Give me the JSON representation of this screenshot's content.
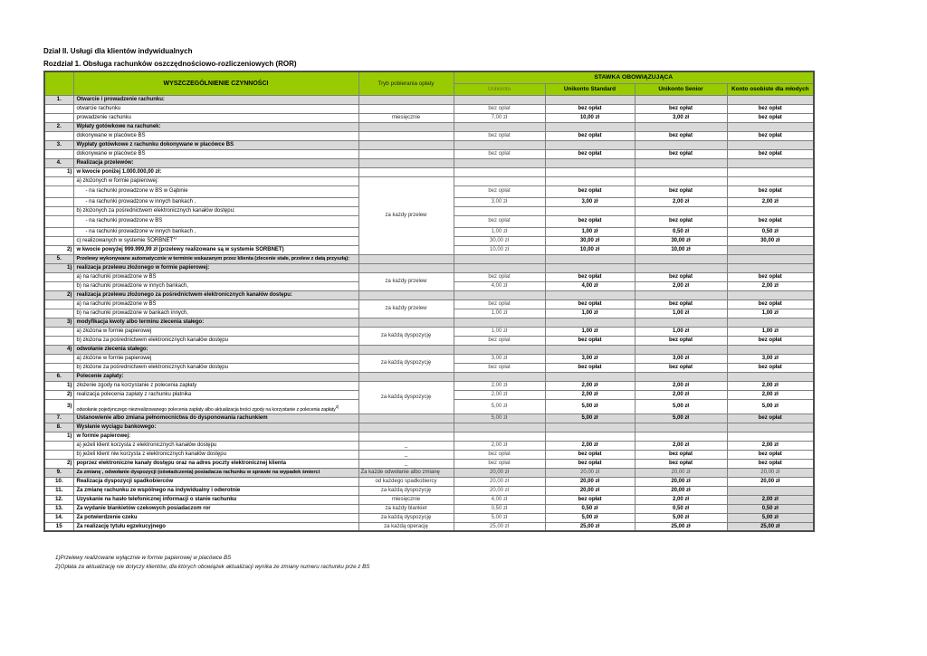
{
  "page": {
    "title_line1": "Dział II. Usługi dla klientów indywidualnych",
    "title_line2": "Rozdział 1. Obsługa rachunków oszczędnościowo-rozliczeniowych (ROR)"
  },
  "table": {
    "header": {
      "col_activities": "WYSZCZEGÓLNIENIE CZYNNOŚCI",
      "col_mode": "Tryb pobierania opłaty",
      "col_rate_group": "STAWKA OBOWIĄZUJĄCA",
      "accounts": [
        "Unikonto",
        "Unikonto Standard",
        "Unikonto Senior",
        "Konto osobiste dla młodych"
      ]
    },
    "rows": [
      {
        "num": "1.",
        "label": "Otwarcie i prowadzenie rachunku:",
        "bold": true,
        "bg": "g",
        "values": null
      },
      {
        "label": "otwarcie rachunku",
        "values": [
          "bez opłat",
          "bez opłat",
          "bez opłat",
          "bez opłat"
        ]
      },
      {
        "label": "prowadzenie rachunku",
        "mode": "miesięcznie",
        "values": [
          "7,00 zł",
          "10,00 zł",
          "3,00 zł",
          "bez opłat"
        ]
      },
      {
        "num": "2.",
        "label": "Wpłaty gotówkowe na rachunek:",
        "bold": true,
        "bg": "g",
        "values": null
      },
      {
        "label": "dokonywane w placówce BS",
        "values": [
          "bez opłat",
          "bez opłat",
          "bez opłat",
          "bez opłat"
        ]
      },
      {
        "num": "3.",
        "label": "Wypłaty gotówkowe z rachunku dokonywane w placówce BS",
        "bold": true,
        "bg": "g",
        "values": null
      },
      {
        "label": "dokonywane w placówce BS",
        "values": [
          "bez opłat",
          "bez opłat",
          "bez opłat",
          "bez opłat"
        ]
      },
      {
        "num": "4.",
        "label": "Realizacja przelewów:",
        "bold": true,
        "bg": "g",
        "values": null
      },
      {
        "num": "1)",
        "num_style": "s",
        "label": "w kwocie poniżej 1.000.000,00 zł:",
        "bold": true,
        "values": null
      },
      {
        "label": "a) złożonych w formie papierowej:",
        "mode": "za każdy przelew",
        "mode_span": 8,
        "values": null
      },
      {
        "label": "- na rachunki prowadzone w BS w Gąbinie",
        "indent": 1,
        "mode_skip": true,
        "values": [
          "bez opłat",
          "bez opłat",
          "bez opłat",
          "bez opłat"
        ],
        "height": 13
      },
      {
        "label": "- na rachunki prowadzone w innych bankach ,",
        "indent": 1,
        "mode_skip": true,
        "values": [
          "3,00 zł",
          "3,00 zł",
          "2,00 zł",
          "2,00 zł"
        ]
      },
      {
        "label": "b) złożonych za pośrednictwem elektronicznych kanałów dostępu:",
        "mode_skip": true,
        "values": null
      },
      {
        "label": "- na rachunki prowadzone w BS",
        "indent": 1,
        "mode_skip": true,
        "values": [
          "bez opłat",
          "bez opłat",
          "bez opłat",
          "bez opłat"
        ],
        "height": 13
      },
      {
        "label": "- na rachunki prowadzone w innych bankach ,",
        "indent": 1,
        "mode_skip": true,
        "values": [
          "1,00 zł",
          "1,00 zł",
          "0,50 zł",
          "0,50 zł"
        ]
      },
      {
        "label": "c) realizowanych w systemie SORBNET^1)",
        "mode_skip": true,
        "values": [
          "30,00 zł",
          "30,00 zł",
          "30,00 zł",
          "30,00 zł"
        ]
      },
      {
        "num": "2)",
        "num_style": "s",
        "label": "w kwocie powyżej 999.999,99 zł (przelewy realizowane są w systemie SORBNET)",
        "bold": true,
        "mode_skip": true,
        "values": [
          "10,00 zł",
          "10,00 zł",
          "10,00 zł",
          ""
        ],
        "value_bg": [
          0,
          0,
          0,
          1
        ]
      },
      {
        "num": "5.",
        "label": "Przelewy wykonywane automatycznie w terminie wskazanym przez klienta (zlecenie stałe, przelew z datą przyszłą):",
        "bold": true,
        "bg": "g",
        "values": null
      },
      {
        "num": "1)",
        "num_style": "s",
        "label": "realizacja przelewu złożonego w formie papierowej:",
        "bold": true,
        "bg": "g",
        "values": null
      },
      {
        "label": "a) na rachunki prowadzone w BS",
        "mode": "za każdy przelew",
        "mode_span": 2,
        "values": [
          "bez opłat",
          "bez opłat",
          "bez opłat",
          "bez opłat"
        ]
      },
      {
        "label": "b) na rachunki prowadzone w innych bankach,",
        "mode_skip": true,
        "values": [
          "4,00 zł",
          "4,00 zł",
          "2,00 zł",
          "2,00 zł"
        ]
      },
      {
        "num": "2)",
        "num_style": "s",
        "label": "realizacja przelewu złożonego za pośrednictwem elektronicznych kanałów dostępu:",
        "bold": true,
        "bg": "g",
        "values": null
      },
      {
        "label": "a) na rachunki prowadzone w BS",
        "mode": "za każdy przelew",
        "mode_span": 2,
        "values": [
          "bez opłat",
          "bez opłat",
          "bez opłat",
          "bez opłat"
        ]
      },
      {
        "label": "b) na rachunki prowadzone w bankach innych,",
        "mode_skip": true,
        "values": [
          "1,00 zł",
          "1,00 zł",
          "1,00 zł",
          "1,00 zł"
        ]
      },
      {
        "num": "3)",
        "num_style": "s",
        "label": "modyfikacja kwoty albo terminu zlecenia stałego:",
        "bold": true,
        "bg": "g",
        "values": null
      },
      {
        "label": "a) złożona w formie papierowej",
        "mode": "za każdą dyspozycję",
        "mode_span": 2,
        "values": [
          "1,00 zł",
          "1,00 zł",
          "1,00 zł",
          "1,00 zł"
        ]
      },
      {
        "label": "b) złożona za pośrednictwem elektronicznych kanałów dostępu",
        "mode_skip": true,
        "values": [
          "bez opłat",
          "bez opłat",
          "bez opłat",
          "bez opłat"
        ]
      },
      {
        "num": "4)",
        "num_style": "s",
        "label": "odwołanie zlecenia stałego:",
        "bold": true,
        "bg": "g",
        "values": null
      },
      {
        "label": "a) złożone w formie papierowej",
        "mode": "za każdą dyspozycję",
        "mode_span": 2,
        "values": [
          "3,00 zł",
          "3,00 zł",
          "3,00 zł",
          "3,00 zł"
        ]
      },
      {
        "label": "b) złożone za pośrednictwem elektronicznych kanałów dostępu",
        "mode_skip": true,
        "values": [
          "bez opłat",
          "bez opłat",
          "bez opłat",
          "bez opłat"
        ]
      },
      {
        "num": "6.",
        "label": "Polecenie zapłaty:",
        "bold": true,
        "bg": "g",
        "values": null
      },
      {
        "num": "1)",
        "num_style": "s",
        "label": "złożenie zgody na korzystanie z polecenia zapłaty",
        "mode": "za każdą dyspozycję",
        "mode_span": 3,
        "values": [
          "2,00 zł",
          "2,00 zł",
          "2,00 zł",
          "2,00 zł"
        ]
      },
      {
        "num": "2)",
        "num_style": "s",
        "label": "realizacja polecenia zapłaty z rachunku płatnika",
        "mode_skip": true,
        "values": [
          "2,00 zł",
          "2,00 zł",
          "2,00 zł",
          "2,00 zł"
        ]
      },
      {
        "num": "3)",
        "num_style": "s",
        "label": "odwołanie pojedynczego niezrealizowanego polecenia zapłaty albo aktualizacja treści zgody na korzystanie z polecenia zapłaty^2)",
        "mode_skip": true,
        "values": [
          "5,00 zł",
          "5,00 zł",
          "5,00 zł",
          "5,00 zł"
        ],
        "height": 16,
        "label_bottom": true
      },
      {
        "num": "7.",
        "label": "Ustanowienie albo zmiana pełnomocnictwa do dysponowania rachunkiem",
        "bold": true,
        "bg": "g",
        "values": [
          "5,00 zł",
          "5,00 zł",
          "5,00 zł",
          "bez opłat"
        ]
      },
      {
        "num": "8.",
        "label": "Wysłanie wyciągu bankowego:",
        "bold": true,
        "bg": "g",
        "values": null
      },
      {
        "num": "1)",
        "num_style": "s",
        "label": "w formie papierowej:",
        "bold": true,
        "values": null
      },
      {
        "label": "a) jeżeli klient korzysta z elektronicznych kanałów dostępu",
        "mode": "_",
        "values": [
          "2,00 zł",
          "2,00 zł",
          "2,00 zł",
          "2,00 zł"
        ]
      },
      {
        "label": "b) jeżeli klient niw korzysta z elektronicznych kanałów dostępu",
        "mode": "_",
        "values": [
          "bez opłat",
          "bez opłat",
          "bez opłat",
          "bez opłat"
        ]
      },
      {
        "num": "2)",
        "num_style": "s",
        "label": "poprzez elektroniczne kanały dostępu oraz na adres poczty elektronicznej klienta",
        "bold": true,
        "mode": "_",
        "values": [
          "bez opłat",
          "bez opłat",
          "bez opłat",
          "bez opłat"
        ]
      },
      {
        "num": "9.",
        "label": "Za zmianę , odwołanie dyspozycji  (oświadczenia) posiadacza rachunku w sprawie na wypadek śmierci",
        "bold": true,
        "bg": "g",
        "mode": "Za każde odwołanie albo zmianę",
        "mode_left": true,
        "values": [
          "20,00 zł",
          "20,00 zł",
          "20,00 zł",
          "20,00 zł"
        ],
        "values_normal": true
      },
      {
        "num": "10.",
        "label": "Realizacja dyspozycji spadkobierców",
        "bold": true,
        "mode": "od każdego spadkobiercy",
        "values": [
          "20,00 zł",
          "20,00 zł",
          "20,00 zł",
          "20,00 zł"
        ]
      },
      {
        "num": "11.",
        "label": "Za zmianę rachunku ze wspólnego na indywidualny i odwrotnie",
        "bold": true,
        "mode": "za każdą dyspozycję",
        "values": [
          "20,00 zł",
          "20,00 zł",
          "20,00 zł",
          ""
        ],
        "value_bg": [
          0,
          0,
          0,
          1
        ]
      },
      {
        "num": "12.",
        "label": "Uzyskanie na hasło telefonicznej informacji o stanie rachunku",
        "bold": true,
        "mode": "miesięcznie",
        "values": [
          "4,00 zł",
          "bez opłat",
          "2,00 zł",
          "2,00 zł"
        ],
        "value_bg": [
          0,
          0,
          0,
          1
        ]
      },
      {
        "num": "13.",
        "label": "Za wydanie blankietów czekowych posiadaczom ror",
        "bold": true,
        "mode": "za każdy blankiet",
        "values": [
          "0,50 zł",
          "0,50 zł",
          "0,50 zł",
          "0,50 zł"
        ],
        "value_bg": [
          0,
          0,
          0,
          1
        ]
      },
      {
        "num": "14.",
        "label": "Za potwierdzenie czeku",
        "bold": true,
        "mode": "za każdą dyspozycję",
        "values": [
          "5,00 zł",
          "5,00 zł",
          "5,00 zł",
          "5,00 zł"
        ],
        "value_bg": [
          0,
          0,
          0,
          1
        ]
      },
      {
        "num": "15",
        "label": "Za realizację tytułu egzekucyjnego",
        "bold": true,
        "mode": "za każdą operację",
        "values": [
          "25,00 zł",
          "25,00 zł",
          "25,00 zł",
          "25,00 zł"
        ],
        "value_bg": [
          0,
          0,
          0,
          1
        ]
      }
    ]
  },
  "footnotes": [
    "1)Przelewy realizowane wyłącznie w formie papierowej w placówce BS",
    "2)Opłata za aktualizację nie dotyczy klientów, dla których obowiązek aktualizacji wynika ze zmiany numeru rachunku prze z BS"
  ]
}
